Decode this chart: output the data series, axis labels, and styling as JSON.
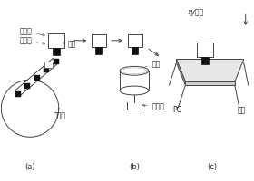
{
  "bg_color": "#ffffff",
  "labels": {
    "dianpiantou": "贴片头",
    "yuanqijian": "元器件",
    "xizui": "吸嘴",
    "guangyuan": "光源",
    "shexiangtou": "摄像头",
    "songliaoqi": "送料器",
    "xy_motion": "xy运动",
    "PC": "PC",
    "handian": "焊盘",
    "a_label": "(a)",
    "b_label": "(b)",
    "c_label": "(c)"
  },
  "colors": {
    "line": "#444444",
    "fill_dark": "#111111",
    "text": "#222222"
  }
}
